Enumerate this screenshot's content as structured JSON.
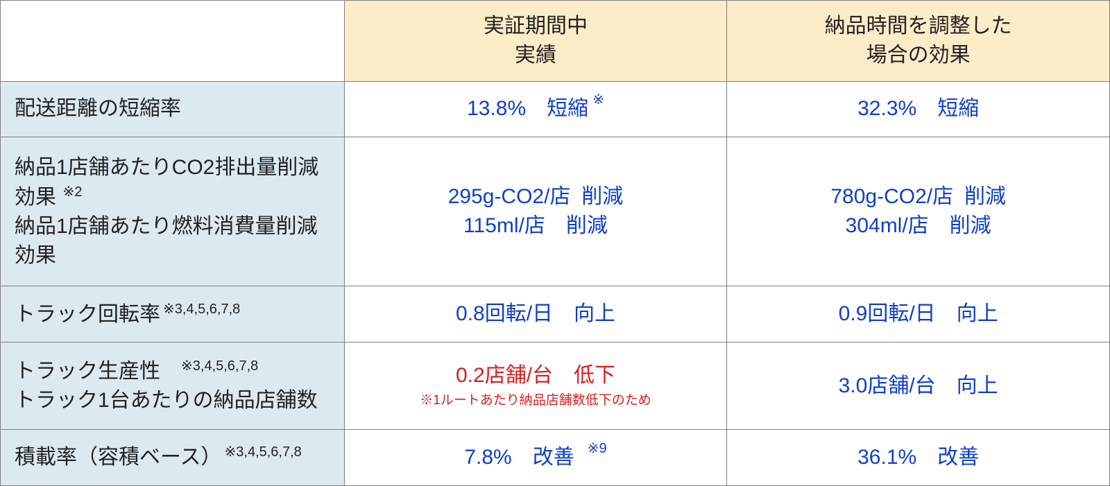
{
  "colors": {
    "border": "#808080",
    "header_bg": "#fdecc8",
    "header_blank_bg": "#ffffff",
    "header_text": "#222222",
    "row_label_bg": "#dde9f1",
    "row_label_text": "#222222",
    "data_text": "#0f3fc7",
    "highlight_text": "#d61f1f"
  },
  "header": {
    "blank": "",
    "col1_line1": "実証期間中",
    "col1_line2": "実績",
    "col2_line1": "納品時間を調整した",
    "col2_line2": "場合の効果"
  },
  "rows": [
    {
      "label_lines": [
        {
          "text": "配送距離の短縮率",
          "sup": ""
        }
      ],
      "col1": {
        "lines": [
          "13.8%　短縮"
        ],
        "sup_right": "※",
        "highlight": false
      },
      "col2": {
        "lines": [
          "32.3%　短縮"
        ],
        "highlight": false
      }
    },
    {
      "label_lines": [
        {
          "text": "納品1店舗あたりCO2排出量削減効果",
          "sup": " ※2"
        },
        {
          "text": "納品1店舗あたり燃料消費量削減効果",
          "sup": ""
        }
      ],
      "col1": {
        "lines": [
          "295g-CO2/店  削減",
          "115ml/店　削減"
        ],
        "highlight": false
      },
      "col2": {
        "lines": [
          "780g-CO2/店  削減",
          "304ml/店　削減"
        ],
        "highlight": false
      }
    },
    {
      "label_lines": [
        {
          "text": "トラック回転率",
          "sup": "※3,4,5,6,7,8"
        }
      ],
      "col1": {
        "lines": [
          "0.8回転/日　向上"
        ],
        "highlight": false
      },
      "col2": {
        "lines": [
          "0.9回転/日　向上"
        ],
        "highlight": false
      }
    },
    {
      "label_lines": [
        {
          "text": "トラック生産性　",
          "sup": "※3,4,5,6,7,8",
          "sup_inline": true
        },
        {
          "text": "トラック1台あたりの納品店舗数",
          "sup": ""
        }
      ],
      "col1": {
        "lines": [
          "0.2店舗/台　低下"
        ],
        "subnote": "※1ルートあたり納品店舗数低下のため",
        "highlight": true
      },
      "col2": {
        "lines": [
          "3.0店舗/台　向上"
        ],
        "highlight": false
      }
    },
    {
      "label_lines": [
        {
          "text": "積載率（容積ベース）",
          "sup": "※3,4,5,6,7,8"
        }
      ],
      "col1": {
        "lines": [
          "7.8%　改善"
        ],
        "sup_right": " ※9",
        "highlight": false
      },
      "col2": {
        "lines": [
          "36.1%　改善"
        ],
        "highlight": false
      }
    }
  ]
}
